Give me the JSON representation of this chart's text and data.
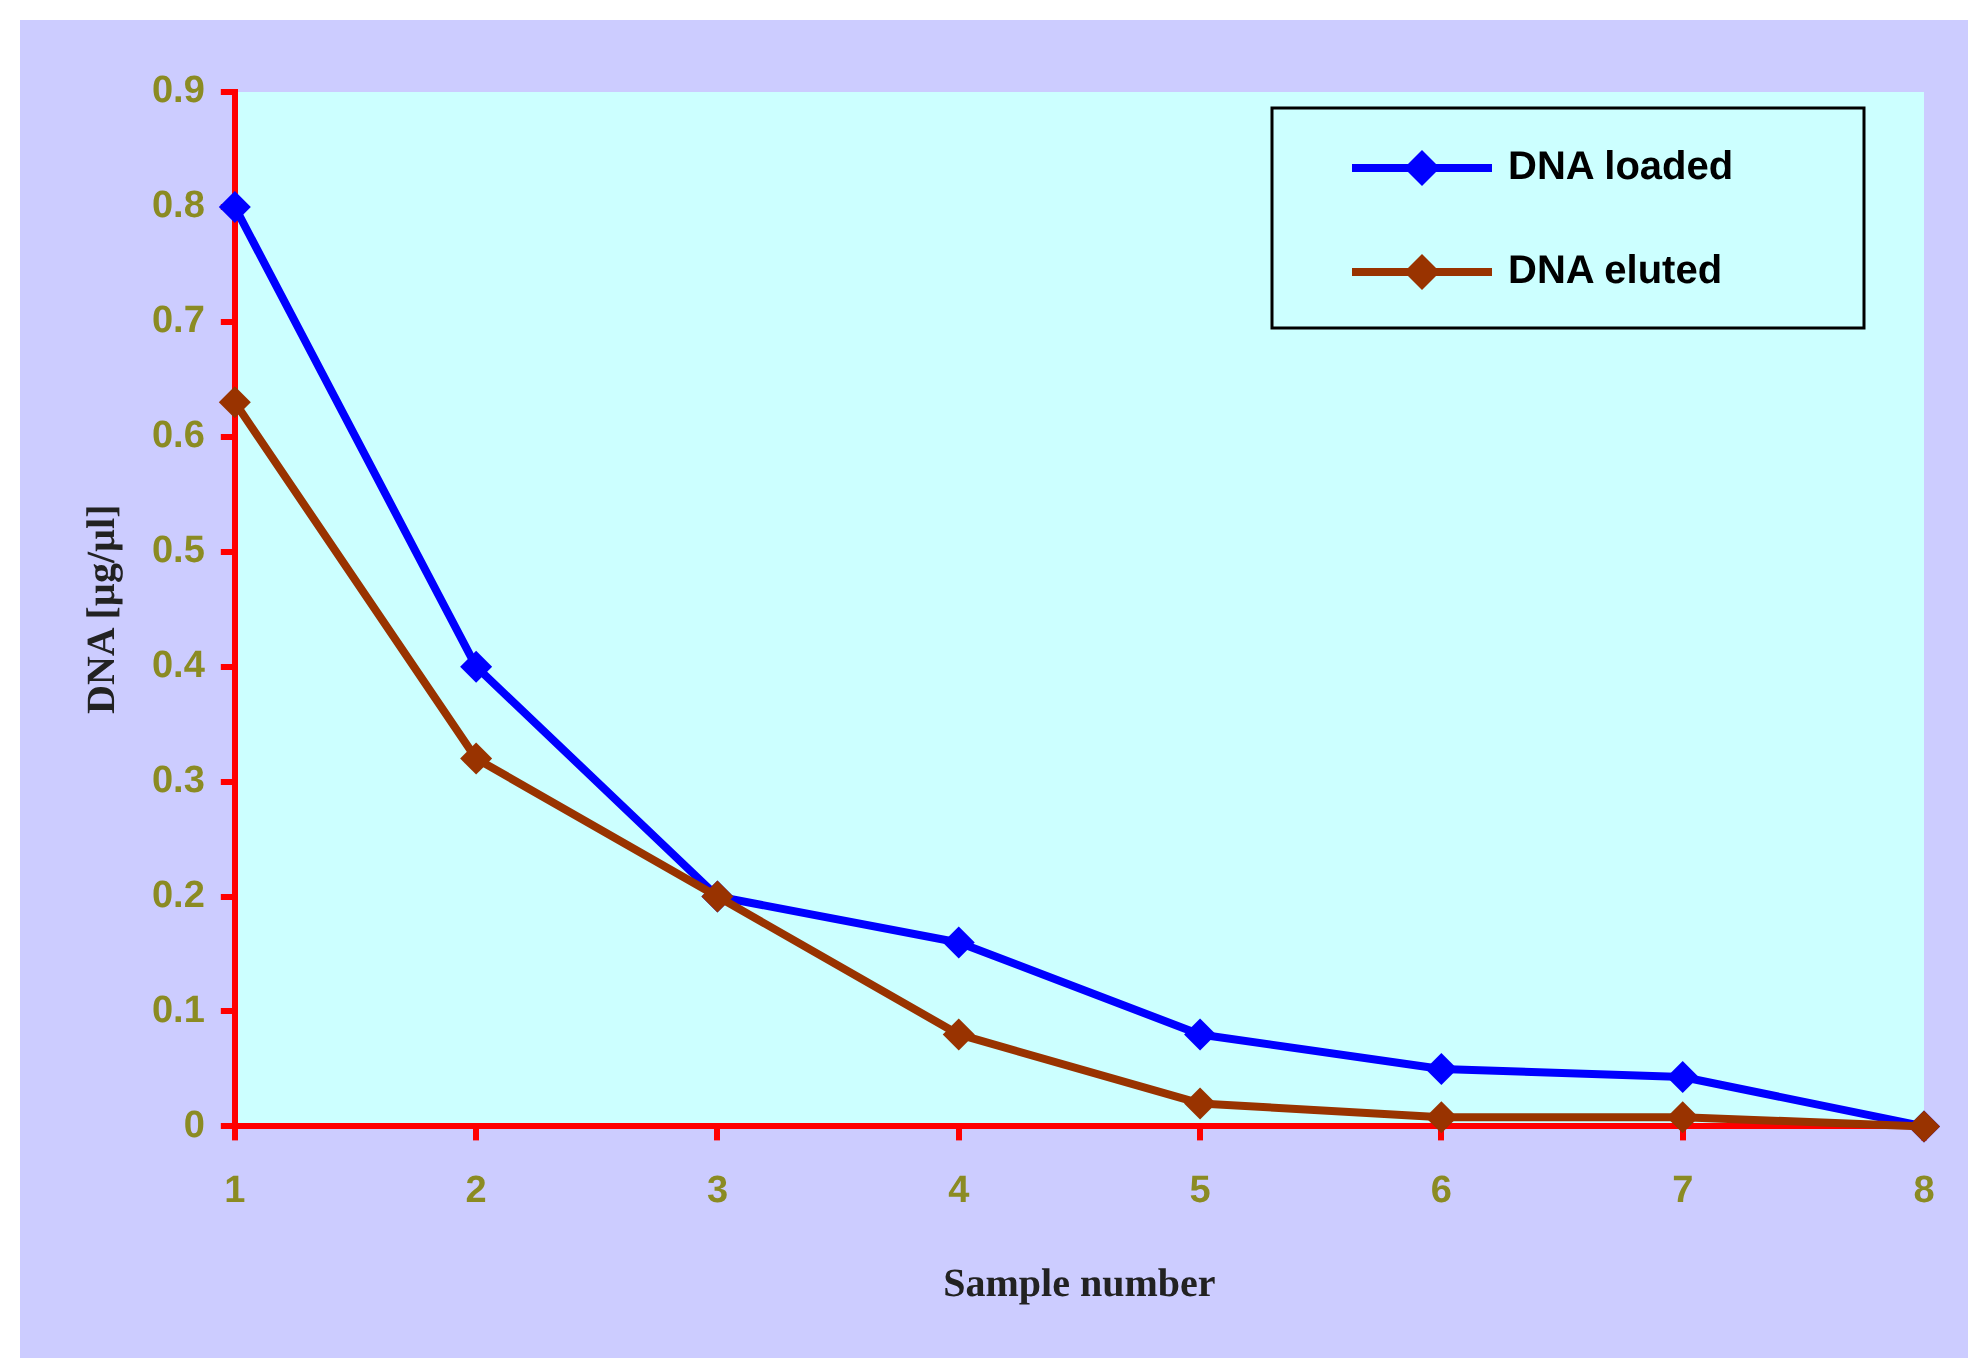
{
  "chart_data": {
    "type": "line",
    "xlabel": "Sample number",
    "ylabel": "DNA [µg/µl]",
    "x": [
      1,
      2,
      3,
      4,
      5,
      6,
      7,
      8
    ],
    "series": [
      {
        "name": "DNA loaded",
        "color": "#0000ff",
        "values": [
          0.8,
          0.4,
          0.2,
          0.16,
          0.08,
          0.05,
          0.043,
          0
        ]
      },
      {
        "name": "DNA eluted",
        "color": "#993300",
        "values": [
          0.63,
          0.32,
          0.2,
          0.08,
          0.02,
          0.008,
          0.008,
          0
        ]
      }
    ],
    "xlim": [
      1,
      8
    ],
    "xticks": [
      1,
      2,
      3,
      4,
      5,
      6,
      7,
      8
    ],
    "ylim": [
      0,
      0.9
    ],
    "yticks": [
      0,
      0.1,
      0.2,
      0.3,
      0.4,
      0.5,
      0.6,
      0.7,
      0.8,
      0.9
    ],
    "grid": false,
    "legend": "top right",
    "marker": "diamond",
    "line_style": "solid"
  }
}
